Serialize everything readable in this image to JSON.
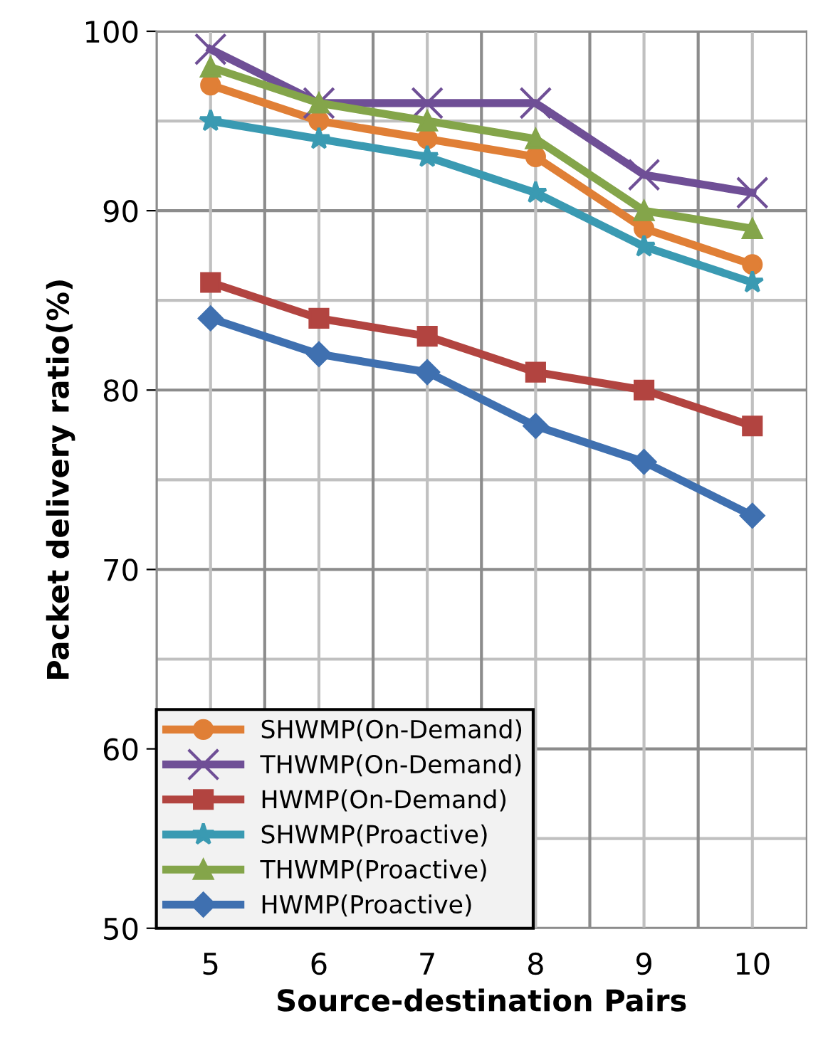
{
  "chart_data": {
    "type": "line",
    "xlabel": "Source-destination Pairs",
    "ylabel": "Packet delivery ratio(%)",
    "categories": [
      "5",
      "6",
      "7",
      "8",
      "9",
      "10"
    ],
    "series": [
      {
        "name": "SHWMP(On-Demand)",
        "color": "#e07f36",
        "marker": "circle",
        "values": [
          97,
          95,
          94,
          93,
          89,
          87
        ]
      },
      {
        "name": "THWMP(On-Demand)",
        "color": "#6f4f96",
        "marker": "cross",
        "values": [
          99,
          96,
          96,
          96,
          92,
          91
        ]
      },
      {
        "name": "HWMP(On-Demand)",
        "color": "#b24440",
        "marker": "square",
        "values": [
          86,
          84,
          83,
          81,
          80,
          78
        ]
      },
      {
        "name": "SHWMP(Proactive)",
        "color": "#3a9ab2",
        "marker": "star",
        "values": [
          95,
          94,
          93,
          91,
          88,
          86
        ]
      },
      {
        "name": "THWMP(Proactive)",
        "color": "#84a54a",
        "marker": "triangle",
        "values": [
          98,
          96,
          95,
          94,
          90,
          89
        ]
      },
      {
        "name": "HWMP(Proactive)",
        "color": "#3f70b0",
        "marker": "diamond",
        "values": [
          84,
          82,
          81,
          78,
          76,
          73
        ]
      }
    ],
    "ylim": [
      50,
      100
    ],
    "yticks": [
      50,
      60,
      70,
      80,
      90,
      100
    ],
    "grid": true,
    "legend": "bottom left"
  }
}
